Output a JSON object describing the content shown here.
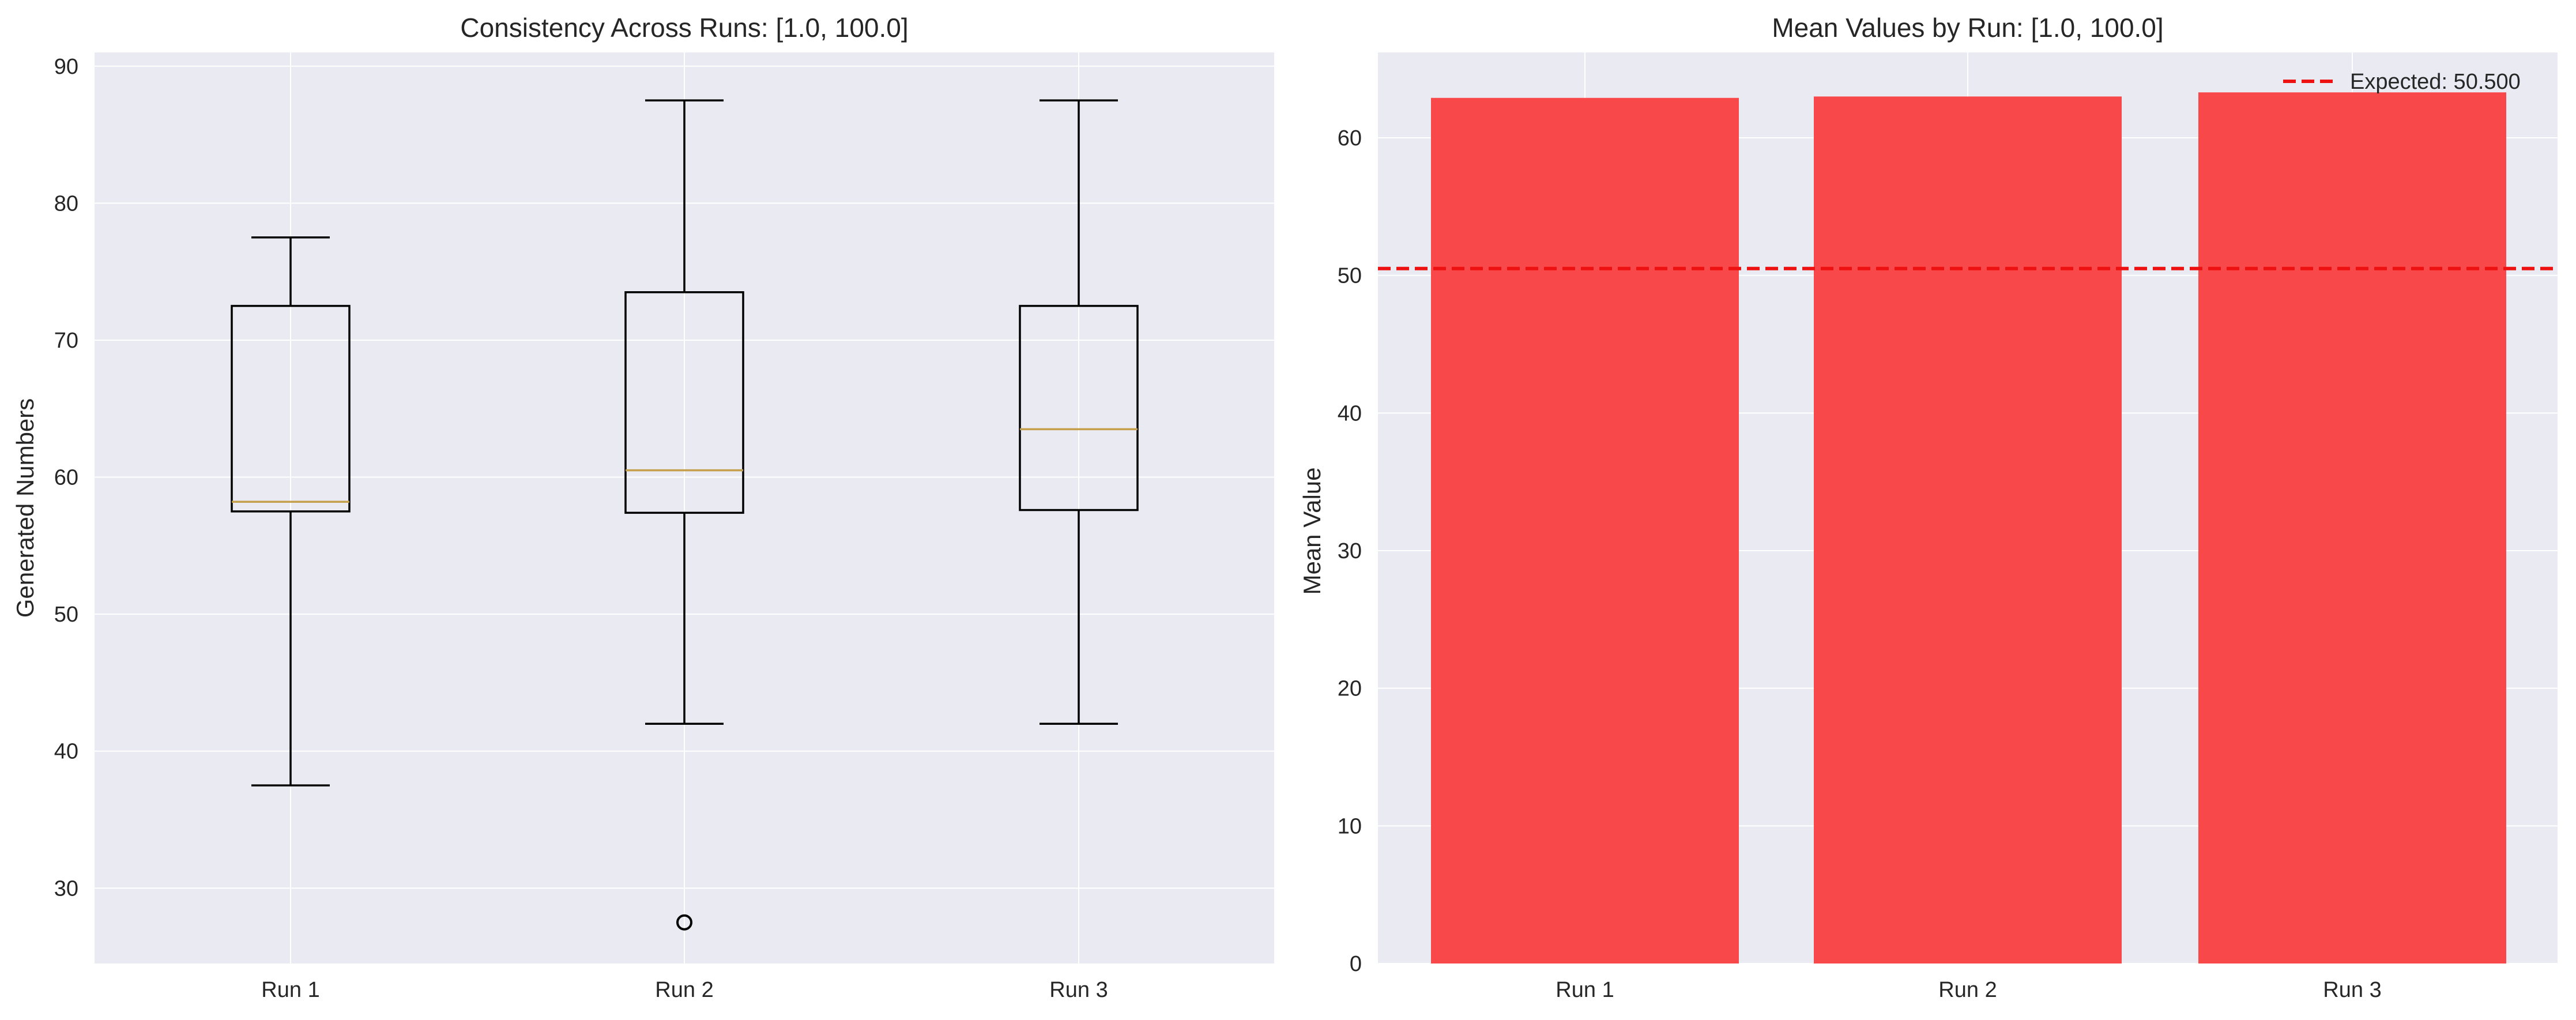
{
  "chart_data": [
    {
      "type": "box",
      "title": "Consistency Across Runs: [1.0, 100.0]",
      "xlabel": "",
      "ylabel": "Generated Numbers",
      "categories": [
        "Run 1",
        "Run 2",
        "Run 3"
      ],
      "boxes": [
        {
          "whisker_low": 37.5,
          "q1": 57.5,
          "median": 58.2,
          "q3": 72.5,
          "whisker_high": 77.5,
          "outliers": []
        },
        {
          "whisker_low": 42.0,
          "q1": 57.4,
          "median": 60.5,
          "q3": 73.5,
          "whisker_high": 87.5,
          "outliers": [
            27.5
          ]
        },
        {
          "whisker_low": 42.0,
          "q1": 57.6,
          "median": 63.5,
          "q3": 72.5,
          "whisker_high": 87.5,
          "outliers": []
        }
      ],
      "yticks": [
        30,
        40,
        50,
        60,
        70,
        80,
        90
      ],
      "ylim": [
        24.5,
        91.0
      ],
      "grid": true,
      "colors": {
        "box": "#000000",
        "median": "#c5a04c",
        "background": "#eaeaf2",
        "grid": "#ffffff"
      }
    },
    {
      "type": "bar",
      "title": "Mean Values by Run: [1.0, 100.0]",
      "xlabel": "",
      "ylabel": "Mean Value",
      "categories": [
        "Run 1",
        "Run 2",
        "Run 3"
      ],
      "values": [
        62.9,
        63.0,
        63.3
      ],
      "reference_line": {
        "value": 50.5,
        "label": "Expected: 50.500",
        "style": "dashed"
      },
      "yticks": [
        0,
        10,
        20,
        30,
        40,
        50,
        60
      ],
      "ylim": [
        0,
        66.2
      ],
      "grid": true,
      "legend_position": "top-right",
      "colors": {
        "bar": "#f8484a",
        "reference_line": "#ee1111",
        "background": "#eaeaf2",
        "grid": "#ffffff"
      }
    }
  ]
}
